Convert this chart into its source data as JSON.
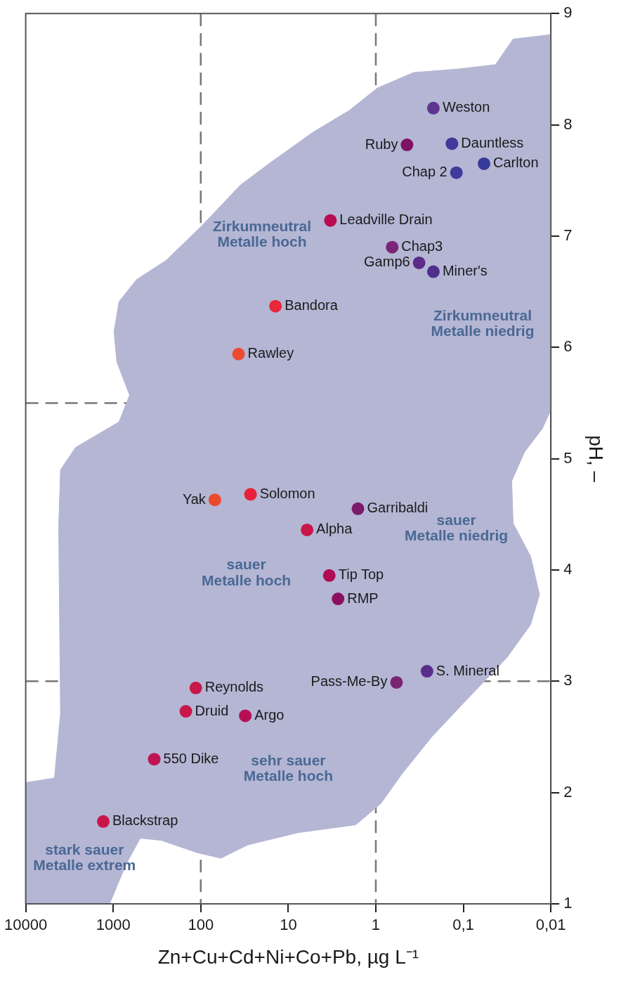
{
  "chart_data": {
    "type": "scatter",
    "xlabel": "Zn+Cu+Cd+Ni+Co+Pb, µg L⁻¹",
    "ylabel": "pH, –",
    "xlim": [
      10000,
      0.01
    ],
    "ylim": [
      1,
      9
    ],
    "log": "x",
    "xticks": [
      10000,
      1000,
      100,
      10,
      1,
      {
        "value": 0.1,
        "label": "0,1"
      },
      {
        "value": 0.01,
        "label": "0,01"
      }
    ],
    "yticks": [
      1,
      2,
      3,
      4,
      5,
      6,
      7,
      8,
      9
    ],
    "grid": false,
    "legend": false,
    "series": [
      {
        "type": "area",
        "color": "#b4b6d4",
        "x": [
          0.01,
          0.027,
          0.043,
          0.12,
          0.37,
          0.96,
          2.0,
          5.3,
          16,
          35,
          98,
          250,
          540,
          860,
          980,
          910,
          650,
          860,
          2700,
          4000,
          4200,
          4000,
          4700,
          10000,
          10000,
          1100,
          710,
          490,
          280,
          110,
          59,
          29,
          7.7,
          1.7,
          0.88,
          0.5,
          0.23,
          0.083,
          0.032,
          0.017,
          0.0135,
          0.017,
          0.027,
          0.028,
          0.02,
          0.0125,
          0.01
        ],
        "values": [
          8.81,
          8.77,
          8.54,
          8.5,
          8.47,
          8.33,
          8.13,
          7.93,
          7.66,
          7.46,
          7.09,
          6.78,
          6.61,
          6.41,
          6.14,
          5.87,
          5.57,
          5.33,
          5.1,
          4.9,
          4.39,
          2.71,
          2.13,
          2.09,
          1,
          1,
          1.36,
          1.59,
          1.57,
          1.46,
          1.41,
          1.53,
          1.64,
          1.71,
          1.9,
          2.17,
          2.5,
          2.87,
          3.21,
          3.51,
          3.78,
          4.12,
          4.42,
          4.8,
          5.06,
          5.27,
          5.44
        ]
      },
      {
        "marker": "circle",
        "x": [
          1300,
          340,
          148,
          114,
          31,
          69,
          27,
          6.1,
          3.4,
          2.7,
          1.6,
          0.58,
          0.26,
          37,
          14,
          3.3,
          0.65,
          0.32,
          0.22,
          0.44,
          0.22,
          0.135,
          0.12,
          0.058
        ],
        "values": [
          1.74,
          2.3,
          2.73,
          2.94,
          2.69,
          4.63,
          4.68,
          4.36,
          3.95,
          3.74,
          4.55,
          2.99,
          3.09,
          5.94,
          6.37,
          7.14,
          6.9,
          6.76,
          6.68,
          7.82,
          8.15,
          7.83,
          7.57,
          7.65
        ],
        "colors": [
          "#c8164a",
          "#bf1452",
          "#c9174c",
          "#c8174a",
          "#b60f55",
          "#ec4a2e",
          "#e8203a",
          "#c8164a",
          "#b00b55",
          "#8c0f5f",
          "#7b1a6a",
          "#7a2475",
          "#5b2d8a",
          "#ec4a32",
          "#e8283a",
          "#b80c50",
          "#7c2478",
          "#5c2c8a",
          "#4e2f8c",
          "#7e1264",
          "#5d3590",
          "#40399a",
          "#3f3a9c",
          "#373a98"
        ]
      }
    ],
    "ref_lines": [
      {
        "axis": "x",
        "value": 100,
        "color": "#777777",
        "line_style": "dashed"
      },
      {
        "axis": "x",
        "value": 1,
        "color": "#777777",
        "line_style": "dashed"
      },
      {
        "axis": "y",
        "value": 3,
        "color": "#777777",
        "line_style": "dashed"
      },
      {
        "axis": "y",
        "value": 5.5,
        "color": "#777777",
        "line_style": "dashed"
      }
    ],
    "annotations": [
      {
        "text": "Blackstrap",
        "x": 1300,
        "y": 1.74
      },
      {
        "text": "550 Dike",
        "x": 340,
        "y": 2.3
      },
      {
        "text": "Druid",
        "x": 148,
        "y": 2.73
      },
      {
        "text": "Reynolds",
        "x": 114,
        "y": 2.94
      },
      {
        "text": "Argo",
        "x": 31,
        "y": 2.69
      },
      {
        "text": "Yak",
        "x": 69,
        "y": 4.63
      },
      {
        "text": "Solomon",
        "x": 27,
        "y": 4.68
      },
      {
        "text": "Alpha",
        "x": 6.1,
        "y": 4.36
      },
      {
        "text": "Tip Top",
        "x": 3.4,
        "y": 3.95
      },
      {
        "text": "RMP",
        "x": 2.7,
        "y": 3.74
      },
      {
        "text": "Garribaldi",
        "x": 1.6,
        "y": 4.55
      },
      {
        "text": "Pass-Me-By",
        "x": 0.58,
        "y": 2.99
      },
      {
        "text": "S. Mineral",
        "x": 0.26,
        "y": 3.09
      },
      {
        "text": "Rawley",
        "x": 37,
        "y": 5.94
      },
      {
        "text": "Bandora",
        "x": 14,
        "y": 6.37
      },
      {
        "text": "Leadville Drain",
        "x": 3.3,
        "y": 7.14
      },
      {
        "text": "Chap3",
        "x": 0.65,
        "y": 6.9
      },
      {
        "text": "Gamp6",
        "x": 0.32,
        "y": 6.76
      },
      {
        "text": "Miner's",
        "x": 0.22,
        "y": 6.68
      },
      {
        "text": "Ruby",
        "x": 0.44,
        "y": 7.82
      },
      {
        "text": "Weston",
        "x": 0.22,
        "y": 8.15
      },
      {
        "text": "Dauntless",
        "x": 0.135,
        "y": 7.83
      },
      {
        "text": "Chap 2",
        "x": 0.12,
        "y": 7.57
      },
      {
        "text": "Carlton",
        "x": 0.058,
        "y": 7.65
      },
      "stark sauer",
      "Metalle extrem",
      "sehr sauer",
      "Metalle hoch",
      "sauer",
      "Metalle hoch",
      "sauer",
      "Metalle niedrig",
      "Zirkumneutral",
      "Metalle hoch",
      "Zirkumneutral",
      "Metalle niedrig"
    ]
  }
}
